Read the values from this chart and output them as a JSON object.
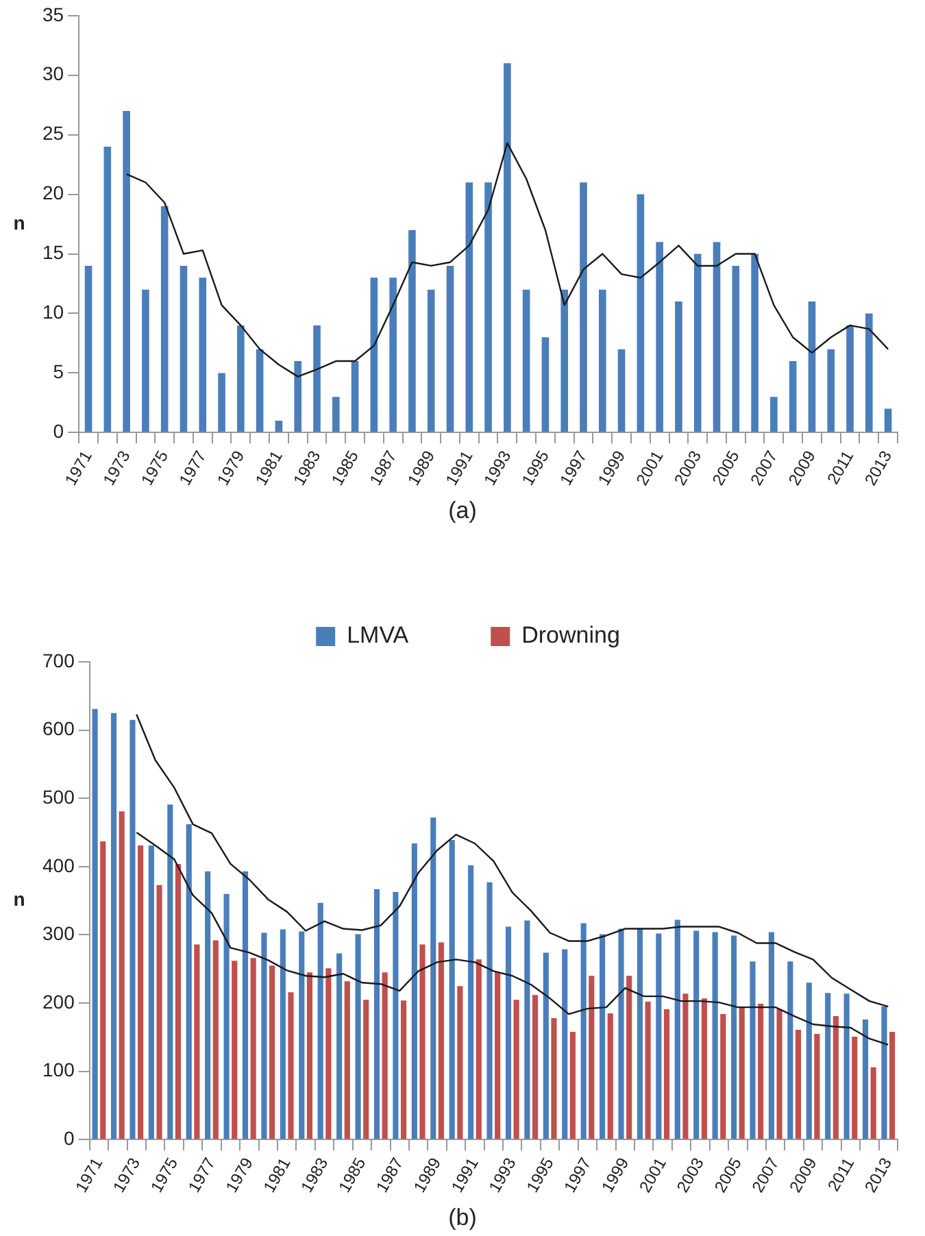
{
  "chart_data": [
    {
      "type": "bar",
      "ylabel": "n",
      "annotations": [
        "(a)"
      ],
      "categories": [
        "1971",
        null,
        "1973",
        null,
        "1975",
        null,
        "1977",
        null,
        "1979",
        null,
        "1981",
        null,
        "1983",
        null,
        "1985",
        null,
        "1987",
        null,
        "1989",
        null,
        "1991",
        null,
        "1993",
        null,
        "1995",
        null,
        "1997",
        null,
        "1999",
        null,
        "2001",
        null,
        "2003",
        null,
        "2005",
        null,
        "2007",
        null,
        "2009",
        null,
        "2011",
        null,
        "2013"
      ],
      "series": [
        {
          "color": "#4a7ebb",
          "values": [
            14,
            24,
            27,
            12,
            19,
            14,
            13,
            5,
            9,
            7,
            1,
            6,
            9,
            3,
            6,
            13,
            13,
            17,
            12,
            14,
            21,
            21,
            31,
            12,
            8,
            12,
            21,
            12,
            7,
            20,
            16,
            11,
            15,
            16,
            14,
            15,
            3,
            6,
            11,
            7,
            9,
            10,
            2
          ]
        },
        {
          "type": "line",
          "color": "#1a1a1a",
          "values": [
            null,
            null,
            21.7,
            21,
            19.3,
            15,
            15.3,
            10.7,
            9,
            7,
            5.7,
            4.7,
            5.3,
            6,
            6,
            7.3,
            10.7,
            14.3,
            14,
            14.3,
            15.7,
            18.7,
            24.3,
            21.3,
            17,
            10.7,
            13.7,
            15,
            13.3,
            13,
            14.3,
            15.7,
            14,
            14,
            15,
            15,
            10.7,
            8,
            6.7,
            8,
            9,
            8.7,
            7
          ]
        }
      ],
      "ylim": [
        0,
        35
      ],
      "yticks": [
        0,
        5,
        10,
        15,
        20,
        25,
        30,
        35
      ],
      "grid": false,
      "legend": false
    },
    {
      "type": "bar",
      "ylabel": "n",
      "annotations": [
        "(b)"
      ],
      "categories": [
        "1971",
        null,
        "1973",
        null,
        "1975",
        null,
        "1977",
        null,
        "1979",
        null,
        "1981",
        null,
        "1983",
        null,
        "1985",
        null,
        "1987",
        null,
        "1989",
        null,
        "1991",
        null,
        "1993",
        null,
        "1995",
        null,
        "1997",
        null,
        "1999",
        null,
        "2001",
        null,
        "2003",
        null,
        "2005",
        null,
        "2007",
        null,
        "2009",
        null,
        "2011",
        null,
        "2013"
      ],
      "series": [
        {
          "name": "LMVA",
          "color": "#4a7ebb",
          "values": [
            631,
            625,
            615,
            431,
            491,
            462,
            393,
            360,
            393,
            303,
            308,
            305,
            347,
            273,
            301,
            367,
            363,
            434,
            472,
            439,
            402,
            377,
            312,
            321,
            274,
            279,
            317,
            301,
            309,
            310,
            302,
            322,
            306,
            304,
            299,
            261,
            304,
            261,
            230,
            215,
            214,
            176,
            195
          ]
        },
        {
          "name": "Drowning",
          "color": "#c0504d",
          "values": [
            437,
            481,
            431,
            373,
            404,
            286,
            292,
            262,
            266,
            255,
            216,
            245,
            251,
            232,
            205,
            245,
            204,
            286,
            289,
            225,
            264,
            245,
            205,
            212,
            178,
            158,
            240,
            185,
            240,
            202,
            191,
            214,
            207,
            184,
            193,
            199,
            191,
            161,
            155,
            181,
            151,
            106,
            158
          ]
        },
        {
          "type": "line",
          "color": "#1a1a1a",
          "values": [
            null,
            null,
            623,
            556,
            516,
            462,
            449,
            404,
            381,
            352,
            334,
            306,
            320,
            309,
            307,
            314,
            342,
            391,
            424,
            447,
            434,
            408,
            362,
            335,
            303,
            291,
            291,
            299,
            309,
            309,
            309,
            312,
            312,
            312,
            303,
            288,
            288,
            275,
            264,
            237,
            220,
            203,
            195
          ]
        },
        {
          "type": "line",
          "color": "#1a1a1a",
          "values": [
            null,
            null,
            450,
            431,
            411,
            358,
            332,
            281,
            274,
            263,
            248,
            240,
            238,
            243,
            230,
            228,
            218,
            247,
            260,
            264,
            260,
            247,
            240,
            227,
            207,
            184,
            192,
            194,
            222,
            210,
            210,
            203,
            203,
            201,
            194,
            194,
            194,
            181,
            169,
            166,
            164,
            148,
            139
          ]
        }
      ],
      "ylim": [
        0,
        700
      ],
      "yticks": [
        0,
        100,
        200,
        300,
        400,
        500,
        600,
        700
      ],
      "grid": false,
      "legend": "top"
    }
  ]
}
